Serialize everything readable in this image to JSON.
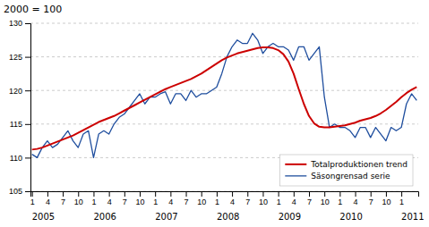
{
  "chart_data": {
    "type": "line",
    "title": "2000 = 100",
    "categories": [
      "1",
      null,
      null,
      "4",
      null,
      null,
      "7",
      null,
      null,
      "10",
      null,
      null,
      "1",
      null,
      null,
      "4",
      null,
      null,
      "7",
      null,
      null,
      "10",
      null,
      null,
      "1",
      null,
      null,
      "4",
      null,
      null,
      "7",
      null,
      null,
      "10",
      null,
      null,
      "1",
      null,
      null,
      "4",
      null,
      null,
      "7",
      null,
      null,
      "10",
      null,
      null,
      "1",
      null,
      null,
      "4",
      null,
      null,
      "7",
      null,
      null,
      "10",
      null,
      null,
      "1",
      null,
      null,
      "4",
      null,
      null,
      "7",
      null,
      null,
      "10",
      null,
      null,
      "1",
      null,
      null,
      null
    ],
    "series": [
      {
        "name": "Totalproduktionen trend",
        "color": "#cc0000",
        "values": [
          111.2,
          111.3,
          111.5,
          111.8,
          112.1,
          112.4,
          112.7,
          113.0,
          113.3,
          113.7,
          114.1,
          114.5,
          114.9,
          115.3,
          115.6,
          115.9,
          116.2,
          116.6,
          117.0,
          117.4,
          117.8,
          118.2,
          118.6,
          119.0,
          119.4,
          119.8,
          120.2,
          120.5,
          120.8,
          121.1,
          121.4,
          121.7,
          122.1,
          122.5,
          123.0,
          123.5,
          124.0,
          124.5,
          124.9,
          125.2,
          125.5,
          125.7,
          125.9,
          126.1,
          126.3,
          126.4,
          126.4,
          126.3,
          126.0,
          125.4,
          124.3,
          122.5,
          120.2,
          118.0,
          116.2,
          115.1,
          114.6,
          114.5,
          114.5,
          114.6,
          114.7,
          114.8,
          115.0,
          115.2,
          115.5,
          115.7,
          115.9,
          116.2,
          116.6,
          117.1,
          117.7,
          118.3,
          119.0,
          119.6,
          120.1,
          120.5
        ]
      },
      {
        "name": "Säsongrensad serie",
        "color": "#1f4e9e",
        "values": [
          110.5,
          110.0,
          111.5,
          112.5,
          111.5,
          112.0,
          113.0,
          114.0,
          112.5,
          111.5,
          113.5,
          114.0,
          110.0,
          113.5,
          114.0,
          113.5,
          115.0,
          116.0,
          116.5,
          117.5,
          118.5,
          119.5,
          118.0,
          119.0,
          119.0,
          119.5,
          119.8,
          118.0,
          119.5,
          119.5,
          118.5,
          120.0,
          119.0,
          119.5,
          119.5,
          120.0,
          120.5,
          122.5,
          125.0,
          126.5,
          127.5,
          127.0,
          127.0,
          128.5,
          127.5,
          125.5,
          126.5,
          127.0,
          126.5,
          126.5,
          126.0,
          124.5,
          126.5,
          126.5,
          124.5,
          125.5,
          126.5,
          119.0,
          114.5,
          115.0,
          114.5,
          114.5,
          114.0,
          113.0,
          114.5,
          114.5,
          113.0,
          114.5,
          113.5,
          112.5,
          114.5,
          114.0,
          114.5,
          118.0,
          119.5,
          118.5
        ]
      }
    ],
    "annotations": [
      {
        "text": "2005",
        "x": 0
      },
      {
        "text": "2006",
        "x": 12
      },
      {
        "text": "2007",
        "x": 24
      },
      {
        "text": "2008",
        "x": 36
      },
      {
        "text": "2009",
        "x": 48
      },
      {
        "text": "2010",
        "x": 60
      },
      {
        "text": "2011",
        "x": 72
      }
    ],
    "ylim": [
      105,
      130
    ],
    "yticks": [
      105,
      110,
      115,
      120,
      125,
      130
    ],
    "grid": true,
    "legend": "lower right"
  }
}
